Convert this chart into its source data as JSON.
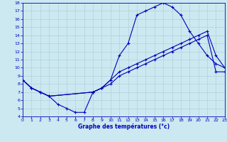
{
  "xlabel": "Graphe des températures (°c)",
  "bg_color": "#cce8f0",
  "line_color": "#0000bb",
  "grid_color": "#aaccd8",
  "xlim": [
    0,
    23
  ],
  "ylim": [
    4,
    18
  ],
  "xticks": [
    0,
    1,
    2,
    3,
    4,
    5,
    6,
    7,
    8,
    9,
    10,
    11,
    12,
    13,
    14,
    15,
    16,
    17,
    18,
    19,
    20,
    21,
    22,
    23
  ],
  "yticks": [
    4,
    5,
    6,
    7,
    8,
    9,
    10,
    11,
    12,
    13,
    14,
    15,
    16,
    17,
    18
  ],
  "curve1_x": [
    0,
    1,
    2,
    3,
    4,
    5,
    6,
    7,
    8,
    9,
    10,
    11,
    12,
    13,
    14,
    15,
    16,
    17,
    18,
    19,
    20,
    21,
    22,
    23
  ],
  "curve1_y": [
    8.5,
    7.5,
    7.0,
    6.5,
    5.5,
    5.0,
    4.5,
    4.5,
    7.0,
    7.5,
    8.5,
    11.5,
    13.0,
    16.5,
    17.0,
    17.5,
    18.0,
    17.5,
    16.5,
    14.5,
    13.0,
    11.5,
    10.5,
    10.0
  ],
  "curve2_x": [
    0,
    1,
    2,
    3,
    8,
    9,
    10,
    11,
    12,
    13,
    14,
    15,
    16,
    17,
    18,
    19,
    20,
    21,
    22,
    23
  ],
  "curve2_y": [
    8.5,
    7.5,
    7.0,
    6.5,
    7.0,
    7.5,
    8.5,
    9.5,
    10.0,
    10.5,
    11.0,
    11.5,
    12.0,
    12.5,
    13.0,
    13.5,
    14.0,
    14.5,
    11.5,
    10.0
  ],
  "curve3_x": [
    0,
    1,
    2,
    3,
    8,
    9,
    10,
    11,
    12,
    13,
    14,
    15,
    16,
    17,
    18,
    19,
    20,
    21,
    22,
    23
  ],
  "curve3_y": [
    8.5,
    7.5,
    7.0,
    6.5,
    7.0,
    7.5,
    8.0,
    9.0,
    9.5,
    10.0,
    10.5,
    11.0,
    11.5,
    12.0,
    12.5,
    13.0,
    13.5,
    14.0,
    9.5,
    9.5
  ]
}
